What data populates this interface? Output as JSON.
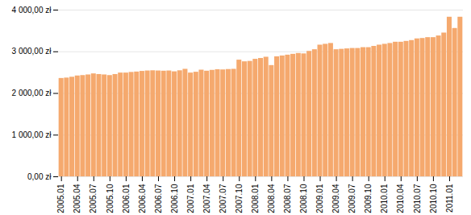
{
  "chart_data": {
    "type": "bar",
    "categories": [
      "2005.01",
      null,
      null,
      "2005.04",
      null,
      null,
      "2005.07",
      null,
      null,
      "2005.10",
      null,
      null,
      "2006.01",
      null,
      null,
      "2006.04",
      null,
      null,
      "2006.07",
      null,
      null,
      "2006.10",
      null,
      null,
      "2007.01",
      null,
      null,
      "2007.04",
      null,
      null,
      "2007.07",
      null,
      null,
      "2007.10",
      null,
      null,
      "2008.01",
      null,
      null,
      "2008.04",
      null,
      null,
      "2008.07",
      null,
      null,
      "2008.10",
      null,
      null,
      "2009.01",
      null,
      null,
      "2009.04",
      null,
      null,
      "2009.07",
      null,
      null,
      "2009.10",
      null,
      null,
      "2010.01",
      null,
      null,
      "2010.04",
      null,
      null,
      "2010.07",
      null,
      null,
      "2010.10",
      null,
      null,
      "2011.01",
      null,
      null
    ],
    "values": [
      2360,
      2370,
      2390,
      2420,
      2430,
      2445,
      2470,
      2455,
      2445,
      2430,
      2455,
      2490,
      2490,
      2505,
      2515,
      2530,
      2540,
      2545,
      2540,
      2535,
      2540,
      2520,
      2545,
      2580,
      2490,
      2510,
      2560,
      2535,
      2555,
      2570,
      2565,
      2575,
      2580,
      2800,
      2760,
      2770,
      2820,
      2840,
      2870,
      2670,
      2880,
      2900,
      2920,
      2940,
      2960,
      2950,
      3010,
      3050,
      3160,
      3180,
      3200,
      3050,
      3060,
      3070,
      3080,
      3080,
      3100,
      3100,
      3130,
      3160,
      3180,
      3200,
      3230,
      3230,
      3250,
      3270,
      3310,
      3320,
      3340,
      3340,
      3380,
      3450,
      3830,
      3560,
      3830
    ],
    "color": "#F5A96E",
    "ylim": [
      0,
      4000
    ],
    "yticks": [
      {
        "value": 0,
        "label": "0,00 zł"
      },
      {
        "value": 1000,
        "label": "1 000,00 zł"
      },
      {
        "value": 2000,
        "label": "2 000,00 zł"
      },
      {
        "value": 3000,
        "label": "3 000,00 zł"
      },
      {
        "value": 4000,
        "label": "4 000,00 zł"
      }
    ],
    "grid": true
  }
}
